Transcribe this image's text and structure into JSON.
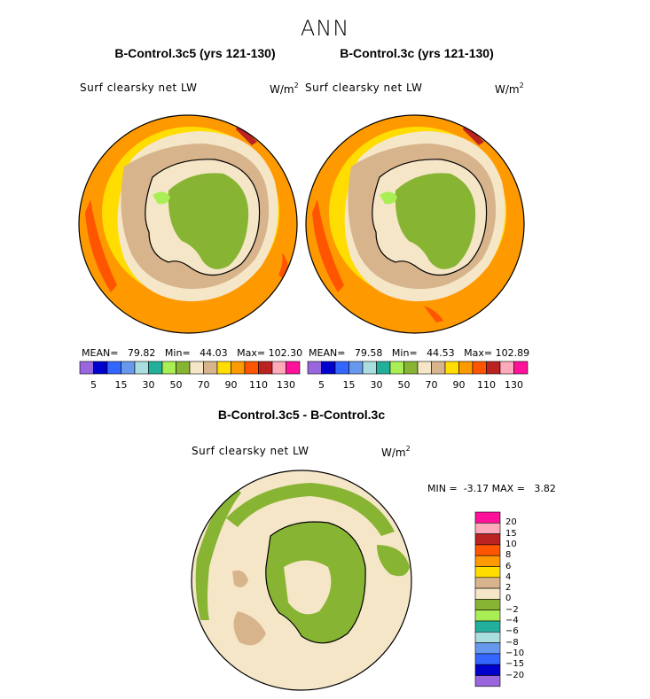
{
  "figure_title": "ANN",
  "panels": [
    {
      "case_title": "B-Control.3c5 (yrs 121-130)",
      "variable": "Surf clearsky net LW",
      "units_base": "W/m",
      "units_exp": "2",
      "mean_label": "MEAN=",
      "mean": "79.82",
      "min_label": "Min=",
      "min": "44.03",
      "max_label": "Max=",
      "max": "102.30"
    },
    {
      "case_title": "B-Control.3c (yrs 121-130)",
      "variable": "Surf clearsky net LW",
      "units_base": "W/m",
      "units_exp": "2",
      "mean_label": "MEAN=",
      "mean": "79.58",
      "min_label": "Min=",
      "min": "44.53",
      "max_label": "Max=",
      "max": "102.89"
    }
  ],
  "field_colorbar": {
    "colors": [
      "#9966dd",
      "#0000cc",
      "#3366ff",
      "#6699ee",
      "#aadddd",
      "#22b09c",
      "#aaee55",
      "#88b433",
      "#f5e6c8",
      "#d8b48c",
      "#ffdd00",
      "#ff9900",
      "#ff5500",
      "#bb2222",
      "#ffaabb",
      "#ff1199"
    ],
    "tick_labels": [
      "5",
      "15",
      "30",
      "50",
      "70",
      "90",
      "110",
      "130"
    ]
  },
  "difference_panel": {
    "title": "B-Control.3c5 - B-Control.3c",
    "variable": "Surf clearsky net LW",
    "units_base": "W/m",
    "units_exp": "2",
    "min_label": "MIN =",
    "min": "-3.17",
    "max_label": "MAX =",
    "max": "3.82",
    "colorbar_colors_top_to_bottom": [
      "#ff1199",
      "#ffaabb",
      "#bb2222",
      "#ff5500",
      "#ff9900",
      "#ffdd00",
      "#d8b48c",
      "#f5e6c8",
      "#88b433",
      "#aaee55",
      "#22b09c",
      "#aadddd",
      "#6699ee",
      "#3366ff",
      "#0000cc",
      "#9966dd"
    ],
    "tick_labels_top_to_bottom": [
      "20",
      "15",
      "10",
      "8",
      "6",
      "4",
      "2",
      "0",
      "−2",
      "−4",
      "−6",
      "−8",
      "−10",
      "−15",
      "−20"
    ]
  }
}
